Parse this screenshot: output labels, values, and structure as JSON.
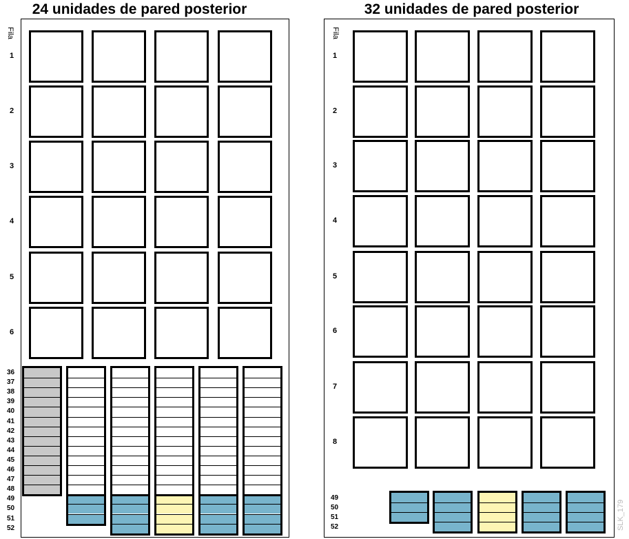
{
  "colors": {
    "gray": "#c8c8c8",
    "blue": "#78b4cc",
    "yellow": "#fdf5b4",
    "white": "#ffffff",
    "border": "#000000"
  },
  "panels": [
    {
      "title": "24 unidades de pared posterior",
      "fila_label": "Fila",
      "rows": [
        "1",
        "2",
        "3",
        "4",
        "5",
        "6"
      ],
      "slot_labels": [
        "36",
        "37",
        "38",
        "39",
        "40",
        "41",
        "42",
        "43",
        "44",
        "45",
        "46",
        "47",
        "48",
        "49",
        "50",
        "51",
        "52"
      ],
      "column_colors": [
        "gray",
        "blue",
        "blue",
        "yellow",
        "blue",
        "blue"
      ]
    },
    {
      "title": "32 unidades de pared posterior",
      "fila_label": "Fila",
      "rows": [
        "1",
        "2",
        "3",
        "4",
        "5",
        "6",
        "7",
        "8"
      ],
      "slot_labels": [
        "49",
        "50",
        "51",
        "52"
      ],
      "column_colors": [
        "blue",
        "blue",
        "yellow",
        "blue",
        "blue"
      ]
    }
  ],
  "watermark": "SLK_179"
}
